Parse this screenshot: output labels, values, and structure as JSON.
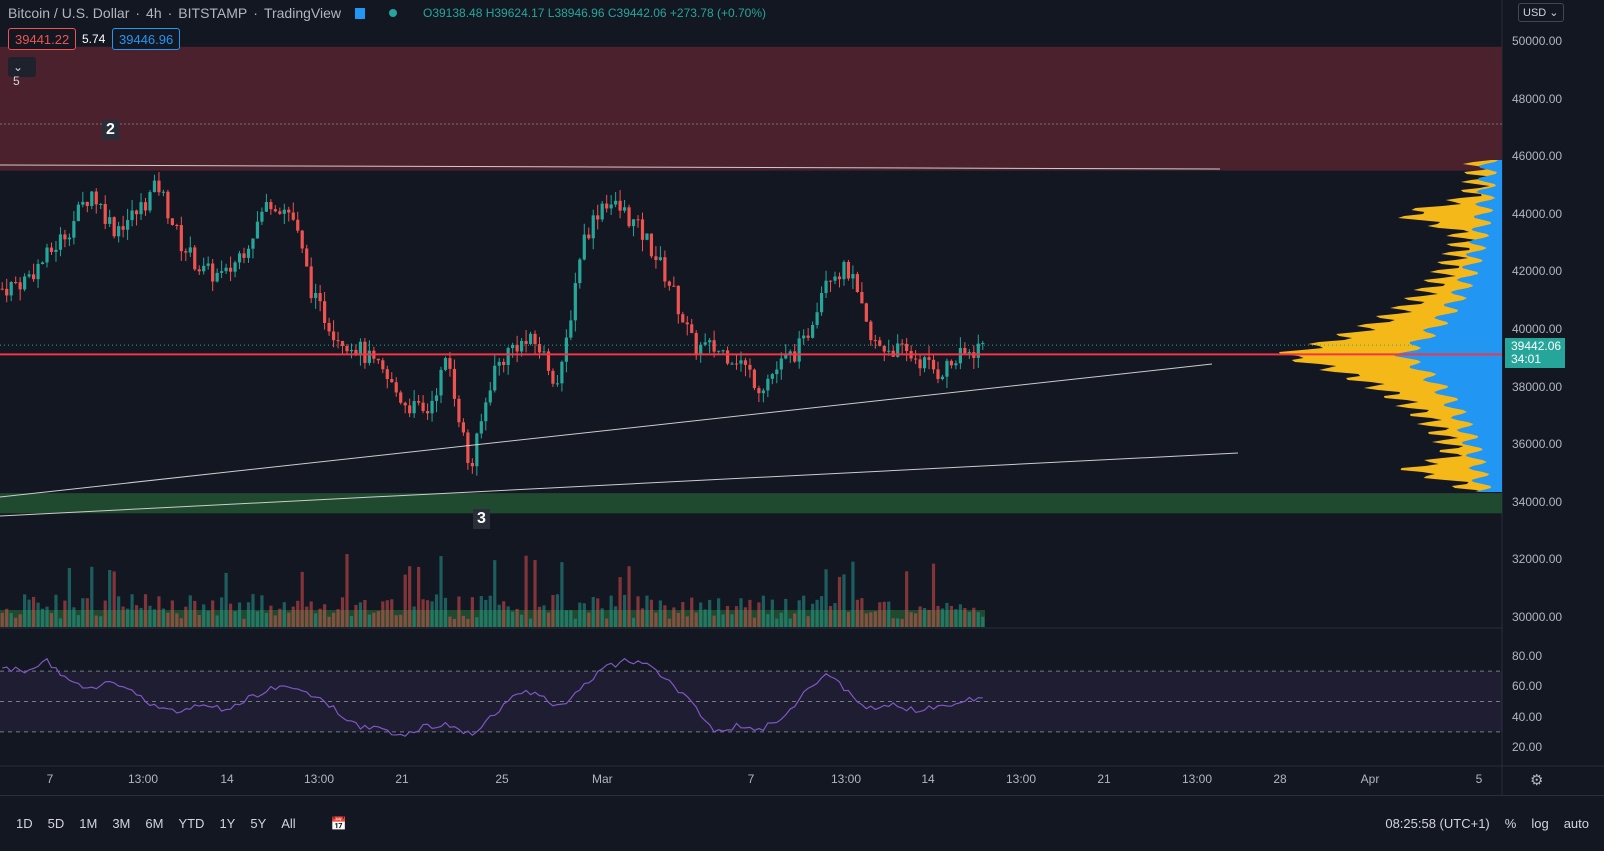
{
  "header": {
    "symbol": "Bitcoin / U.S. Dollar",
    "interval": "4h",
    "exchange": "BITSTAMP",
    "source": "TradingView",
    "open": "O39138.48",
    "high": "H39624.17",
    "low": "L38946.96",
    "close": "C39442.06",
    "change": "+273.78 (+0.70%)"
  },
  "quote": {
    "bid": "39441.22",
    "spread": "5.74",
    "ask": "39446.96"
  },
  "indicators_badge": "5",
  "currency": "USD",
  "last_price": "39442.06",
  "countdown": "34:01",
  "markers": [
    "2",
    "3"
  ],
  "colors": {
    "up": "#26a69a",
    "down": "#ef5350",
    "resistance": "#4b212d",
    "support": "#1f4a30",
    "rsi": "#7e57c2",
    "vp_up": "#2196f3",
    "vp_down": "#f5b819"
  },
  "chart_data": {
    "type": "candlestick",
    "ylim": [
      30000,
      50000
    ],
    "yticks": [
      "50000.00",
      "48000.00",
      "46000.00",
      "44000.00",
      "42000.00",
      "40000.00",
      "38000.00",
      "36000.00",
      "34000.00",
      "32000.00",
      "30000.00"
    ],
    "xticks": [
      "7",
      "13:00",
      "14",
      "13:00",
      "21",
      "25",
      "Mar",
      "7",
      "13:00",
      "14",
      "13:00",
      "21",
      "13:00",
      "28",
      "Apr",
      "5"
    ],
    "close_path": [
      41400,
      41700,
      42500,
      43500,
      44800,
      43500,
      44000,
      45000,
      43000,
      42000,
      41800,
      43000,
      44500,
      44000,
      41000,
      39800,
      39300,
      38500,
      37500,
      37000,
      39000,
      35000,
      38500,
      39500,
      39500,
      38000,
      43000,
      44500,
      44000,
      43000,
      41500,
      39400,
      39300,
      39000,
      38000,
      38800,
      39500,
      42000,
      42000,
      39500,
      39300,
      39000,
      38500,
      39000,
      39442
    ],
    "zones": [
      {
        "name": "resistance",
        "from": 45500,
        "to": 49800
      },
      {
        "name": "support",
        "from": 33600,
        "to": 34300
      }
    ],
    "horizontal_line": 39120,
    "rsi": {
      "levels": [
        70,
        50,
        30
      ],
      "yticks": [
        "80.00",
        "60.00",
        "40.00",
        "20.00"
      ],
      "path": [
        72,
        70,
        77,
        62,
        60,
        62,
        55,
        46,
        44,
        47,
        45,
        52,
        58,
        60,
        54,
        44,
        34,
        31,
        28,
        34,
        35,
        28,
        40,
        55,
        57,
        45,
        60,
        72,
        77,
        74,
        62,
        48,
        30,
        34,
        32,
        38,
        55,
        70,
        55,
        45,
        48,
        44,
        46,
        50,
        53
      ]
    }
  },
  "bottom": {
    "ranges": [
      "1D",
      "5D",
      "1M",
      "3M",
      "6M",
      "YTD",
      "1Y",
      "5Y",
      "All"
    ],
    "time": "08:25:58 (UTC+1)",
    "percent": "%",
    "log": "log",
    "auto": "auto"
  }
}
